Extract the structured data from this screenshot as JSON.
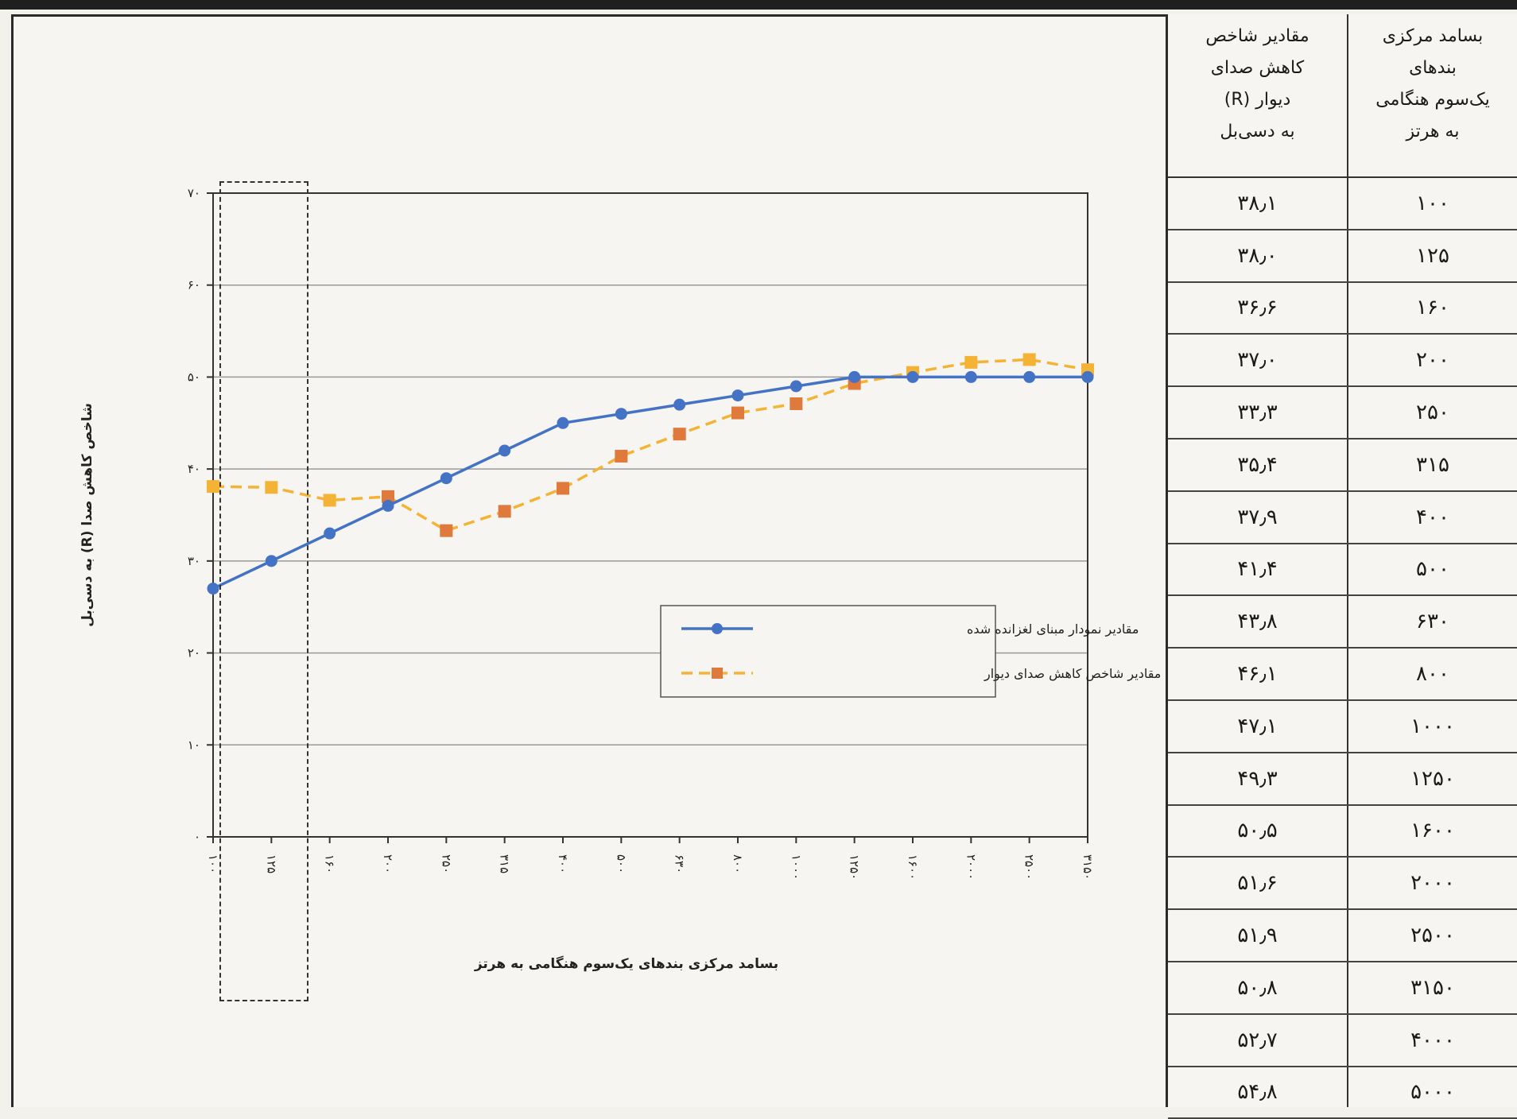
{
  "chart_data": {
    "type": "line",
    "title": "",
    "xlabel": "بسامد مرکزی بندهای یک‌سوم هنگامی به هرتز",
    "ylabel": "شاخص کاهش صدا (R) به دسی‌بل",
    "ylim": [
      0,
      70
    ],
    "yticks": [
      "۰",
      "۱۰",
      "۲۰",
      "۳۰",
      "۴۰",
      "۵۰",
      "۶۰",
      "۷۰"
    ],
    "categories": [
      "۱۰۰",
      "۱۲۵",
      "۱۶۰",
      "۲۰۰",
      "۲۵۰",
      "۳۱۵",
      "۴۰۰",
      "۵۰۰",
      "۶۳۰",
      "۸۰۰",
      "۱۰۰۰",
      "۱۲۵۰",
      "۱۶۰۰",
      "۲۰۰۰",
      "۲۵۰۰",
      "۳۱۵۰"
    ],
    "grid": true,
    "legend_position": "center-right",
    "series": [
      {
        "name": "مقادیر نمودار مبنای لغزانده شده",
        "color": "#4472c4",
        "marker": "circle",
        "values": [
          27,
          30,
          33,
          36,
          39,
          42,
          45,
          46,
          47,
          48,
          49,
          50,
          50,
          50,
          50,
          50
        ]
      },
      {
        "name": "مقادیر شاخص کاهش صدای دیوار",
        "color_line": "#f5b335",
        "color_marker": "#e07a3c",
        "marker": "square",
        "values": [
          38.1,
          38.0,
          36.6,
          37.0,
          33.3,
          35.4,
          37.9,
          41.4,
          43.8,
          46.1,
          47.1,
          49.3,
          50.5,
          51.6,
          51.9,
          50.8
        ]
      }
    ]
  },
  "table": {
    "header_r": "مقادیر شاخص\nکاهش صدای\nدیوار (R)\nبه دسی‌بل",
    "header_f": "بسامد مرکزی\nبندهای\nیک‌سوم هنگامی\nبه هرتز",
    "rows": [
      {
        "r": "۳۸٫۱",
        "f": "۱۰۰"
      },
      {
        "r": "۳۸٫۰",
        "f": "۱۲۵"
      },
      {
        "r": "۳۶٫۶",
        "f": "۱۶۰"
      },
      {
        "r": "۳۷٫۰",
        "f": "۲۰۰"
      },
      {
        "r": "۳۳٫۳",
        "f": "۲۵۰"
      },
      {
        "r": "۳۵٫۴",
        "f": "۳۱۵"
      },
      {
        "r": "۳۷٫۹",
        "f": "۴۰۰"
      },
      {
        "r": "۴۱٫۴",
        "f": "۵۰۰"
      },
      {
        "r": "۴۳٫۸",
        "f": "۶۳۰"
      },
      {
        "r": "۴۶٫۱",
        "f": "۸۰۰"
      },
      {
        "r": "۴۷٫۱",
        "f": "۱۰۰۰"
      },
      {
        "r": "۴۹٫۳",
        "f": "۱۲۵۰"
      },
      {
        "r": "۵۰٫۵",
        "f": "۱۶۰۰"
      },
      {
        "r": "۵۱٫۶",
        "f": "۲۰۰۰"
      },
      {
        "r": "۵۱٫۹",
        "f": "۲۵۰۰"
      },
      {
        "r": "۵۰٫۸",
        "f": "۳۱۵۰"
      },
      {
        "r": "۵۲٫۷",
        "f": "۴۰۰۰"
      },
      {
        "r": "۵۴٫۸",
        "f": "۵۰۰۰"
      }
    ]
  }
}
